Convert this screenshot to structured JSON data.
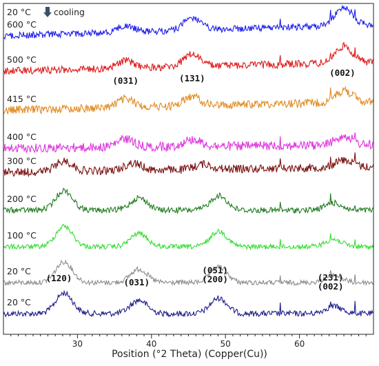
{
  "chart_data": {
    "type": "line",
    "xlabel": "Position (°2 Theta) (Copper(Cu))",
    "xlim": [
      20,
      70
    ],
    "xticks": [
      30,
      40,
      50,
      60
    ],
    "ylabel": "",
    "y_ticks_shown": false,
    "grid": false,
    "top_label": {
      "text": "20 °C",
      "annotation": "cooling",
      "arrow_color": "#3a4f6b"
    },
    "series": [
      {
        "name": "20 °C",
        "label": "20 °C",
        "color": "#1b1b8a",
        "peaks": [
          [
            28.2,
            1.0
          ],
          [
            38.3,
            0.65
          ],
          [
            49.1,
            0.75
          ],
          [
            64.6,
            0.35
          ]
        ],
        "noise": 0.14
      },
      {
        "name": "20 °C",
        "label": "20 °C",
        "color": "#8c8c8c",
        "peaks": [
          [
            28.2,
            1.0
          ],
          [
            38.3,
            0.65
          ],
          [
            49.1,
            0.75
          ],
          [
            64.6,
            0.35
          ]
        ],
        "noise": 0.12
      },
      {
        "name": "100 °C",
        "label": "100 °C",
        "color": "#33dd33",
        "peaks": [
          [
            28.2,
            1.0
          ],
          [
            38.3,
            0.65
          ],
          [
            49.1,
            0.75
          ],
          [
            64.6,
            0.35
          ]
        ],
        "noise": 0.12
      },
      {
        "name": "200 °C",
        "label": "200 °C",
        "color": "#1e7a1e",
        "peaks": [
          [
            28.2,
            0.95
          ],
          [
            38.3,
            0.6
          ],
          [
            49.1,
            0.7
          ],
          [
            64.6,
            0.35
          ]
        ],
        "noise": 0.14
      },
      {
        "name": "300 °C",
        "label": "300 °C",
        "color": "#7a1010",
        "peaks": [
          [
            28.2,
            0.5
          ],
          [
            37.5,
            0.35
          ],
          [
            47.0,
            0.25
          ],
          [
            66.0,
            0.35
          ]
        ],
        "noise": 0.2
      },
      {
        "name": "400 °C",
        "label": "400 °C",
        "color": "#dd33dd",
        "peaks": [
          [
            36.5,
            0.4
          ],
          [
            45.5,
            0.35
          ],
          [
            66.0,
            0.45
          ]
        ],
        "noise": 0.22
      },
      {
        "name": "415 °C",
        "label": "415 °C",
        "color": "#e08a20",
        "peaks": [
          [
            36.5,
            0.4
          ],
          [
            45.5,
            0.45
          ],
          [
            66.0,
            0.55
          ]
        ],
        "noise": 0.2
      },
      {
        "name": "500 °C",
        "label": "500 °C",
        "color": "#dd1a1a",
        "peaks": [
          [
            36.5,
            0.35
          ],
          [
            45.5,
            0.6
          ],
          [
            66.0,
            0.8
          ]
        ],
        "noise": 0.18
      },
      {
        "name": "600 °C",
        "label": "600 °C",
        "color": "#1a1aee",
        "peaks": [
          [
            36.5,
            0.3
          ],
          [
            45.5,
            0.6
          ],
          [
            66.0,
            0.9
          ]
        ],
        "noise": 0.16
      }
    ],
    "sharp_lines_x": [
      57.4,
      64.2,
      67.5
    ],
    "peak_labels": [
      {
        "text": "(120)",
        "x": 27.5,
        "series": 0
      },
      {
        "text": "(031)",
        "x": 38.0,
        "series": 0
      },
      {
        "text": "(051)",
        "x": 48.6,
        "series": 0,
        "line2": "(200)"
      },
      {
        "text": "(231)",
        "x": 64.2,
        "series": 0,
        "line2": "(002)"
      },
      {
        "text": "(031)",
        "x": 36.5,
        "series": 6
      },
      {
        "text": "(131)",
        "x": 45.5,
        "series": 6
      },
      {
        "text": "(002)",
        "x": 65.8,
        "series": 6
      }
    ]
  }
}
